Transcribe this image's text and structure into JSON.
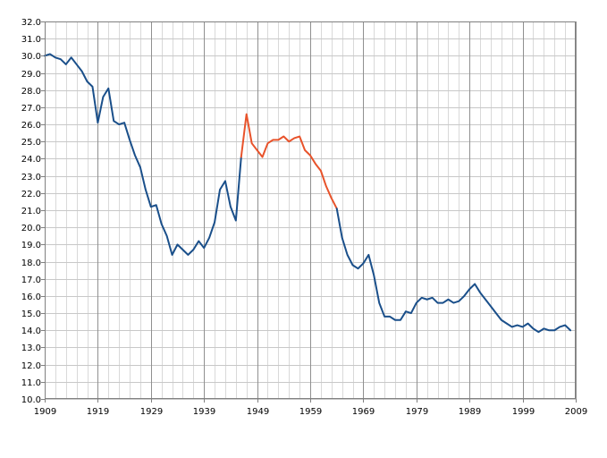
{
  "chart_data": {
    "type": "line",
    "title": "",
    "xlabel": "",
    "ylabel": "",
    "xlim": [
      1909,
      2009
    ],
    "ylim": [
      10.0,
      32.0
    ],
    "x_ticks": [
      1909,
      1919,
      1929,
      1939,
      1949,
      1959,
      1969,
      1979,
      1989,
      1999,
      2009
    ],
    "x_tick_labels": [
      "1909",
      "1919",
      "1929",
      "1939",
      "1949",
      "1959",
      "1969",
      "1979",
      "1989",
      "1999",
      "2009"
    ],
    "y_ticks": [
      10.0,
      11.0,
      12.0,
      13.0,
      14.0,
      15.0,
      16.0,
      17.0,
      18.0,
      19.0,
      20.0,
      21.0,
      22.0,
      23.0,
      24.0,
      25.0,
      26.0,
      27.0,
      28.0,
      29.0,
      30.0,
      31.0,
      32.0
    ],
    "y_tick_labels": [
      "10.0",
      "11.0",
      "12.0",
      "13.0",
      "14.0",
      "15.0",
      "16.0",
      "17.0",
      "18.0",
      "19.0",
      "20.0",
      "21.0",
      "22.0",
      "23.0",
      "24.0",
      "25.0",
      "26.0",
      "27.0",
      "28.0",
      "29.0",
      "30.0",
      "31.0",
      "32.0"
    ],
    "grid": true,
    "minor_x_grid_step": 2,
    "legend": "none",
    "series": [
      {
        "color": "#1a4f8a",
        "points": [
          [
            1909,
            30.0
          ],
          [
            1910,
            30.1
          ],
          [
            1911,
            29.9
          ],
          [
            1912,
            29.8
          ],
          [
            1913,
            29.5
          ],
          [
            1914,
            29.9
          ],
          [
            1915,
            29.5
          ],
          [
            1916,
            29.1
          ],
          [
            1917,
            28.5
          ],
          [
            1918,
            28.2
          ],
          [
            1919,
            26.1
          ],
          [
            1920,
            27.6
          ],
          [
            1921,
            28.1
          ],
          [
            1922,
            26.2
          ],
          [
            1923,
            26.0
          ],
          [
            1924,
            26.1
          ],
          [
            1925,
            25.1
          ],
          [
            1926,
            24.2
          ],
          [
            1927,
            23.5
          ],
          [
            1928,
            22.2
          ],
          [
            1929,
            21.2
          ],
          [
            1930,
            21.3
          ],
          [
            1931,
            20.2
          ],
          [
            1932,
            19.5
          ],
          [
            1933,
            18.4
          ],
          [
            1934,
            19.0
          ],
          [
            1935,
            18.7
          ],
          [
            1936,
            18.4
          ],
          [
            1937,
            18.7
          ],
          [
            1938,
            19.2
          ],
          [
            1939,
            18.8
          ],
          [
            1940,
            19.4
          ],
          [
            1941,
            20.3
          ],
          [
            1942,
            22.2
          ],
          [
            1943,
            22.7
          ],
          [
            1944,
            21.2
          ],
          [
            1945,
            20.4
          ],
          [
            1946,
            24.1
          ]
        ]
      },
      {
        "color": "#e8532b",
        "points": [
          [
            1946,
            24.1
          ],
          [
            1947,
            26.6
          ],
          [
            1948,
            24.9
          ],
          [
            1949,
            24.5
          ],
          [
            1950,
            24.1
          ],
          [
            1951,
            24.9
          ],
          [
            1952,
            25.1
          ],
          [
            1953,
            25.1
          ],
          [
            1954,
            25.3
          ],
          [
            1955,
            25.0
          ],
          [
            1956,
            25.2
          ],
          [
            1957,
            25.3
          ],
          [
            1958,
            24.5
          ],
          [
            1959,
            24.2
          ],
          [
            1960,
            23.7
          ],
          [
            1961,
            23.3
          ],
          [
            1962,
            22.4
          ],
          [
            1963,
            21.7
          ],
          [
            1964,
            21.1
          ]
        ]
      },
      {
        "color": "#1a4f8a",
        "points": [
          [
            1964,
            21.1
          ],
          [
            1965,
            19.4
          ],
          [
            1966,
            18.4
          ],
          [
            1967,
            17.8
          ],
          [
            1968,
            17.6
          ],
          [
            1969,
            17.9
          ],
          [
            1970,
            18.4
          ],
          [
            1971,
            17.2
          ],
          [
            1972,
            15.6
          ],
          [
            1973,
            14.8
          ],
          [
            1974,
            14.8
          ],
          [
            1975,
            14.6
          ],
          [
            1976,
            14.6
          ],
          [
            1977,
            15.1
          ],
          [
            1978,
            15.0
          ],
          [
            1979,
            15.6
          ],
          [
            1980,
            15.9
          ],
          [
            1981,
            15.8
          ],
          [
            1982,
            15.9
          ],
          [
            1983,
            15.6
          ],
          [
            1984,
            15.6
          ],
          [
            1985,
            15.8
          ],
          [
            1986,
            15.6
          ],
          [
            1987,
            15.7
          ],
          [
            1988,
            16.0
          ],
          [
            1989,
            16.4
          ],
          [
            1990,
            16.7
          ],
          [
            1991,
            16.2
          ],
          [
            1992,
            15.8
          ],
          [
            1993,
            15.4
          ],
          [
            1994,
            15.0
          ],
          [
            1995,
            14.6
          ],
          [
            1996,
            14.4
          ],
          [
            1997,
            14.2
          ],
          [
            1998,
            14.3
          ],
          [
            1999,
            14.2
          ],
          [
            2000,
            14.4
          ],
          [
            2001,
            14.1
          ],
          [
            2002,
            13.9
          ],
          [
            2003,
            14.1
          ],
          [
            2004,
            14.0
          ],
          [
            2005,
            14.0
          ],
          [
            2006,
            14.2
          ],
          [
            2007,
            14.3
          ],
          [
            2008,
            14.0
          ]
        ]
      }
    ]
  }
}
